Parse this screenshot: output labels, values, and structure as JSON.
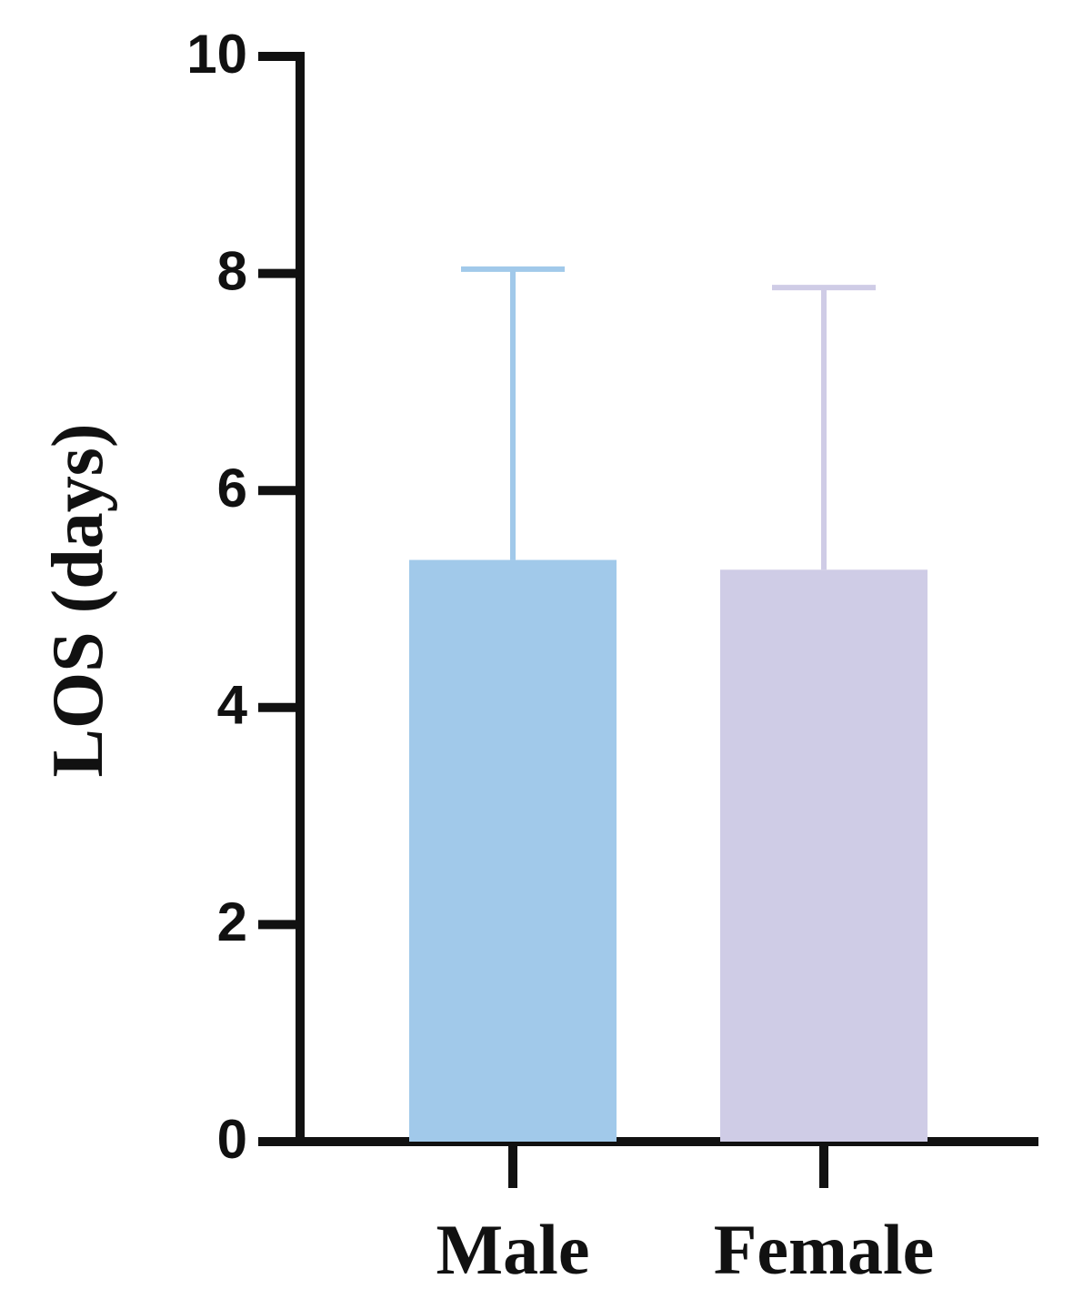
{
  "chart_data": {
    "type": "bar",
    "y_label": "LOS (days)",
    "categories": [
      "Male",
      "Female"
    ],
    "values": [
      5.36,
      5.27
    ],
    "errors": [
      2.68,
      2.6
    ],
    "colors": [
      "#a1c9ea",
      "#cfcce6"
    ],
    "ylim": [
      0,
      10
    ],
    "yticks": [
      0,
      2,
      4,
      6,
      8,
      10
    ]
  }
}
